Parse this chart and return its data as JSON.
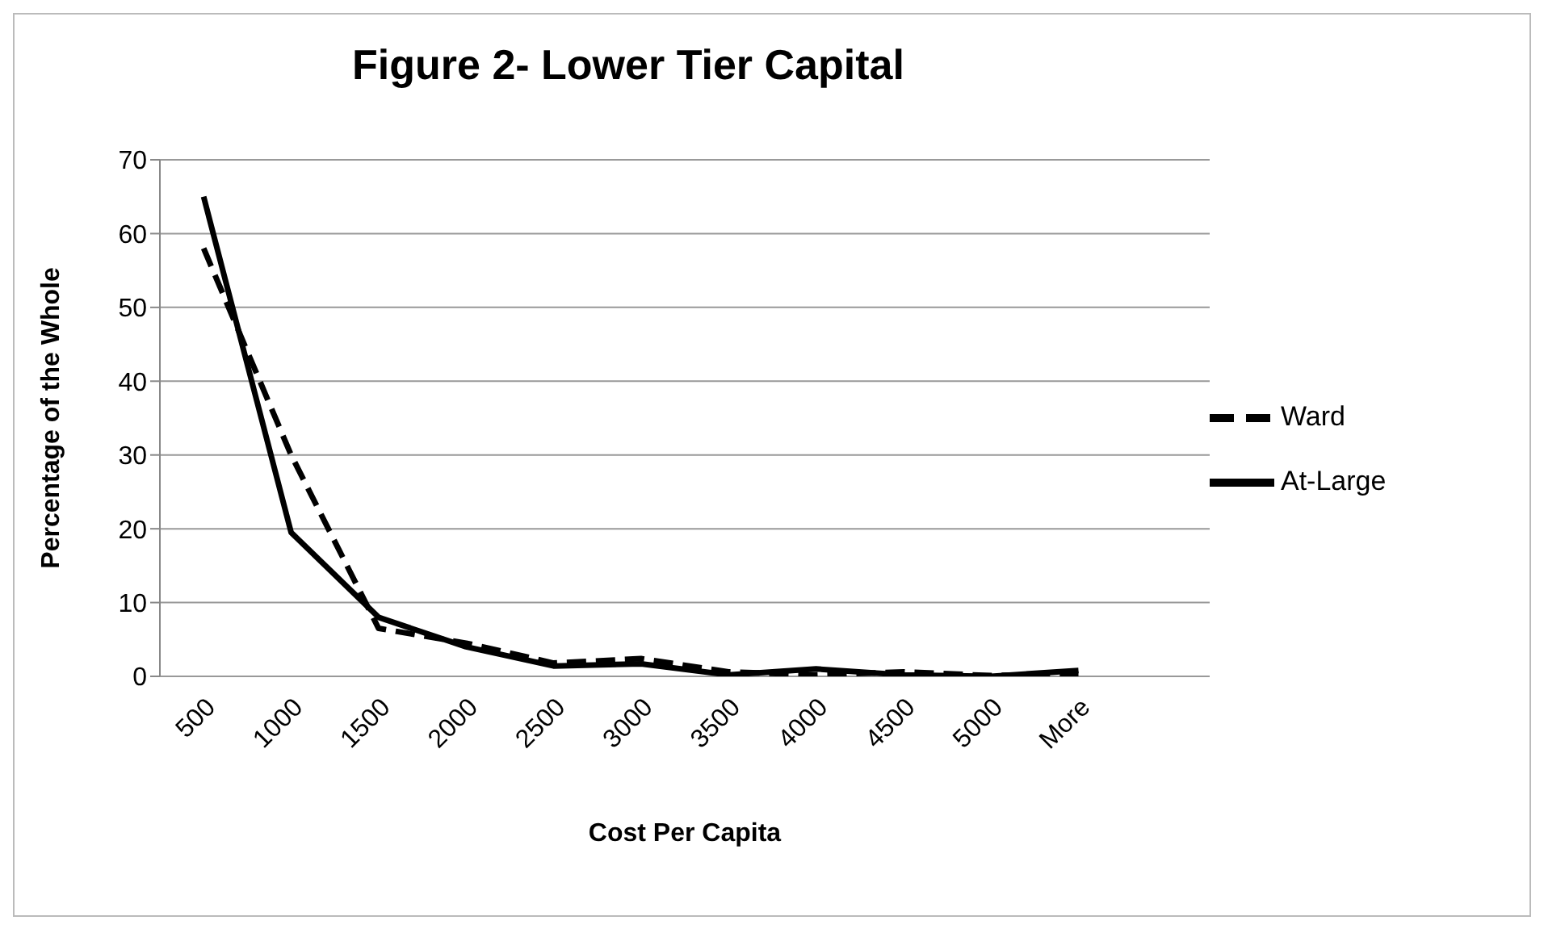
{
  "chart_data": {
    "type": "line",
    "title": "Figure 2- Lower Tier Capital",
    "xlabel": "Cost Per Capita",
    "ylabel": "Percentage of the Whole",
    "categories": [
      "500",
      "1000",
      "1500",
      "2000",
      "2500",
      "3000",
      "3500",
      "4000",
      "4500",
      "5000",
      "More",
      null
    ],
    "series": [
      {
        "name": "Ward",
        "color": "#000000",
        "line_style": "dashed",
        "values": [
          58,
          30,
          6.5,
          4.5,
          1.8,
          2.4,
          0.6,
          0.2,
          0.6,
          0.1,
          0.3,
          null
        ]
      },
      {
        "name": "At-Large",
        "color": "#000000",
        "line_style": "solid",
        "values": [
          65,
          19.5,
          8,
          4,
          1.4,
          1.7,
          0.2,
          1,
          0.2,
          0,
          0.8,
          null
        ]
      }
    ],
    "ylim": [
      0,
      70
    ],
    "yticks": [
      0,
      10,
      20,
      30,
      40,
      50,
      60,
      70
    ],
    "grid": "y",
    "legend": "right",
    "marker": "none"
  }
}
